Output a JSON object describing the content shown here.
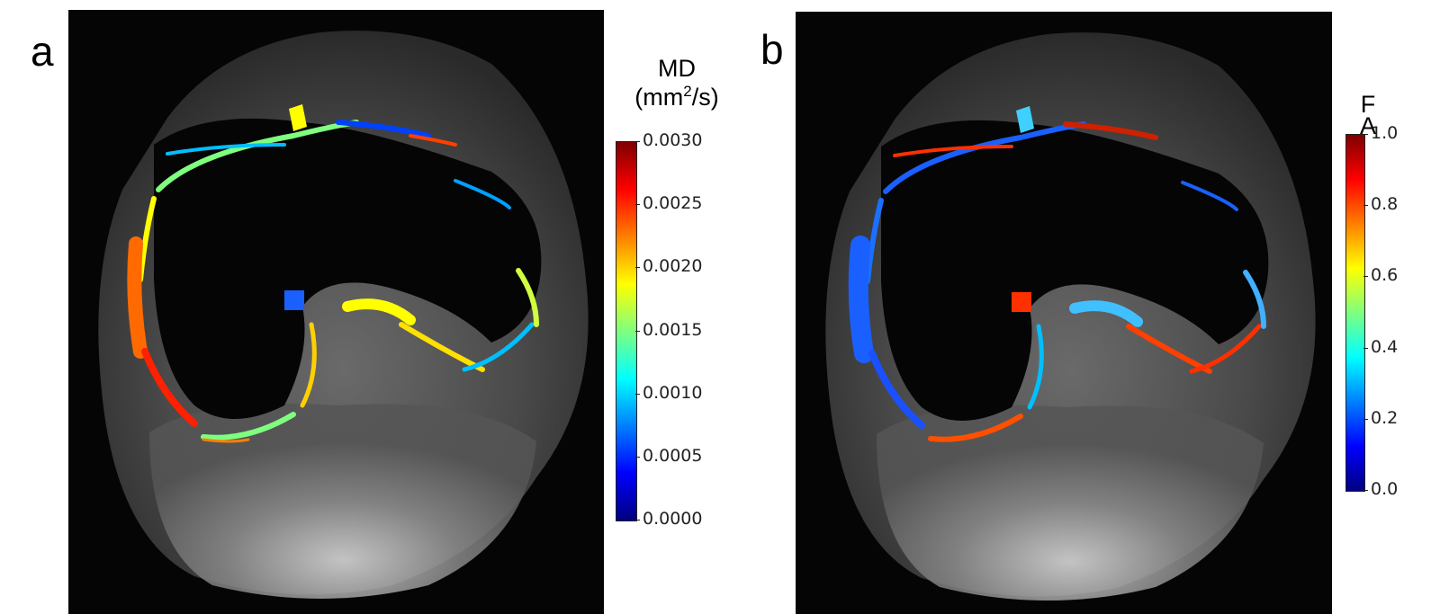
{
  "panel_a": {
    "letter": "a",
    "colorbar": {
      "title_line1": "MD",
      "title_line2_pre": "(mm",
      "title_sup": "2",
      "title_line2_post": "/s)",
      "ticks": [
        "0.0030",
        "0.0025",
        "0.0020",
        "0.0015",
        "0.0010",
        "0.0005",
        "0.0000"
      ],
      "colormap": "jet"
    }
  },
  "panel_b": {
    "letter": "b",
    "colorbar": {
      "title_line1": "F",
      "title_line2": "A",
      "ticks": [
        "1.0",
        "0.8",
        "0.6",
        "0.4",
        "0.2",
        "0.0"
      ],
      "colormap": "jet"
    }
  },
  "colors": {
    "background": "#ffffff",
    "image_background": "#050505",
    "jet": [
      "#00007f",
      "#0000ff",
      "#007fff",
      "#00ffff",
      "#7fff7f",
      "#ffff00",
      "#ff7f00",
      "#ff0000",
      "#7f0000"
    ]
  }
}
